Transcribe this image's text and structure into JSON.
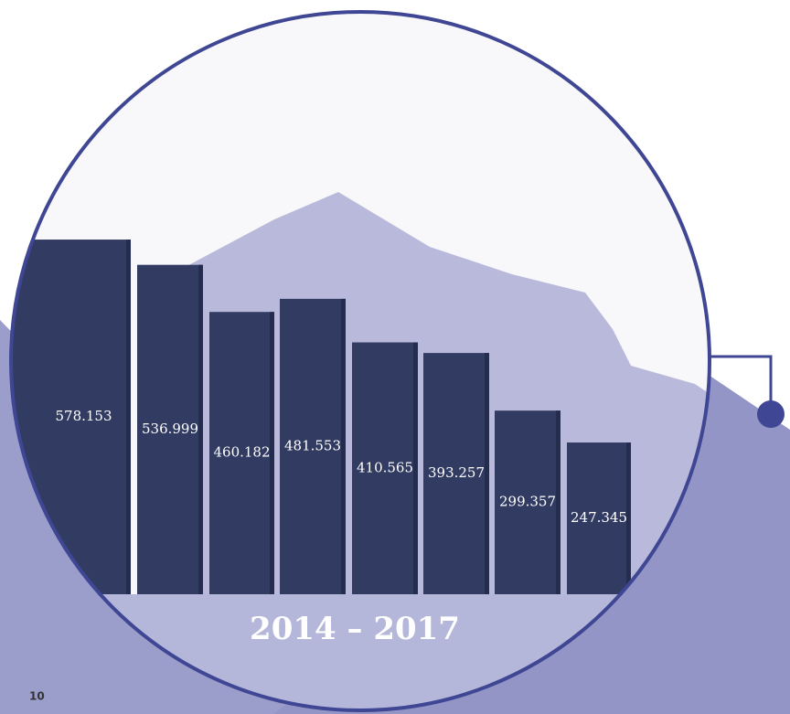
{
  "chart_data": {
    "type": "bar",
    "title": "2014 – 2017",
    "categories": [
      null,
      null,
      null,
      null,
      null,
      null,
      null,
      null
    ],
    "values": [
      578.153,
      536.999,
      460.182,
      481.553,
      410.565,
      393.257,
      299.357,
      247.345
    ],
    "color": "#323c62"
  },
  "page_number": "10"
}
